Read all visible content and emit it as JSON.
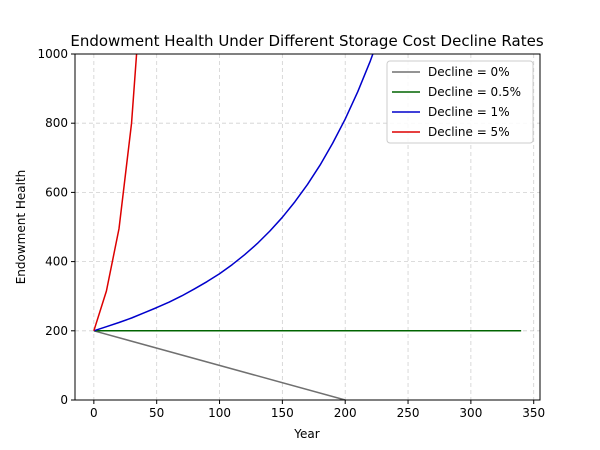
{
  "chart_data": {
    "type": "line",
    "title": "Endowment Health Under Different Storage Cost Decline Rates",
    "xlabel": "Year",
    "ylabel": "Endowment Health",
    "xlim": [
      -15,
      355
    ],
    "ylim": [
      0,
      1000
    ],
    "xticks": [
      0,
      50,
      100,
      150,
      200,
      250,
      300,
      350
    ],
    "yticks": [
      0,
      200,
      400,
      600,
      800,
      1000
    ],
    "grid": true,
    "legend_position": "top-right",
    "series": [
      {
        "name": "Decline = 0%",
        "color": "#707070",
        "x": [
          0,
          200
        ],
        "y": [
          200,
          0
        ]
      },
      {
        "name": "Decline = 0.5%",
        "color": "#006400",
        "x": [
          0,
          340
        ],
        "y": [
          200,
          200
        ]
      },
      {
        "name": "Decline = 1%",
        "color": "#0000cc",
        "x": [
          0,
          10,
          20,
          30,
          40,
          50,
          60,
          70,
          80,
          90,
          100,
          110,
          120,
          130,
          140,
          150,
          160,
          170,
          180,
          190,
          200,
          210,
          220,
          222
        ],
        "y": [
          200,
          212,
          224,
          237,
          252,
          267,
          283,
          301,
          321,
          342,
          365,
          391,
          420,
          452,
          488,
          528,
          573,
          623,
          679,
          742,
          812,
          891,
          980,
          1000
        ]
      },
      {
        "name": "Decline = 5%",
        "color": "#dd0000",
        "x": [
          0,
          10,
          20,
          30,
          34
        ],
        "y": [
          200,
          315,
          495,
          800,
          1000
        ]
      }
    ]
  }
}
